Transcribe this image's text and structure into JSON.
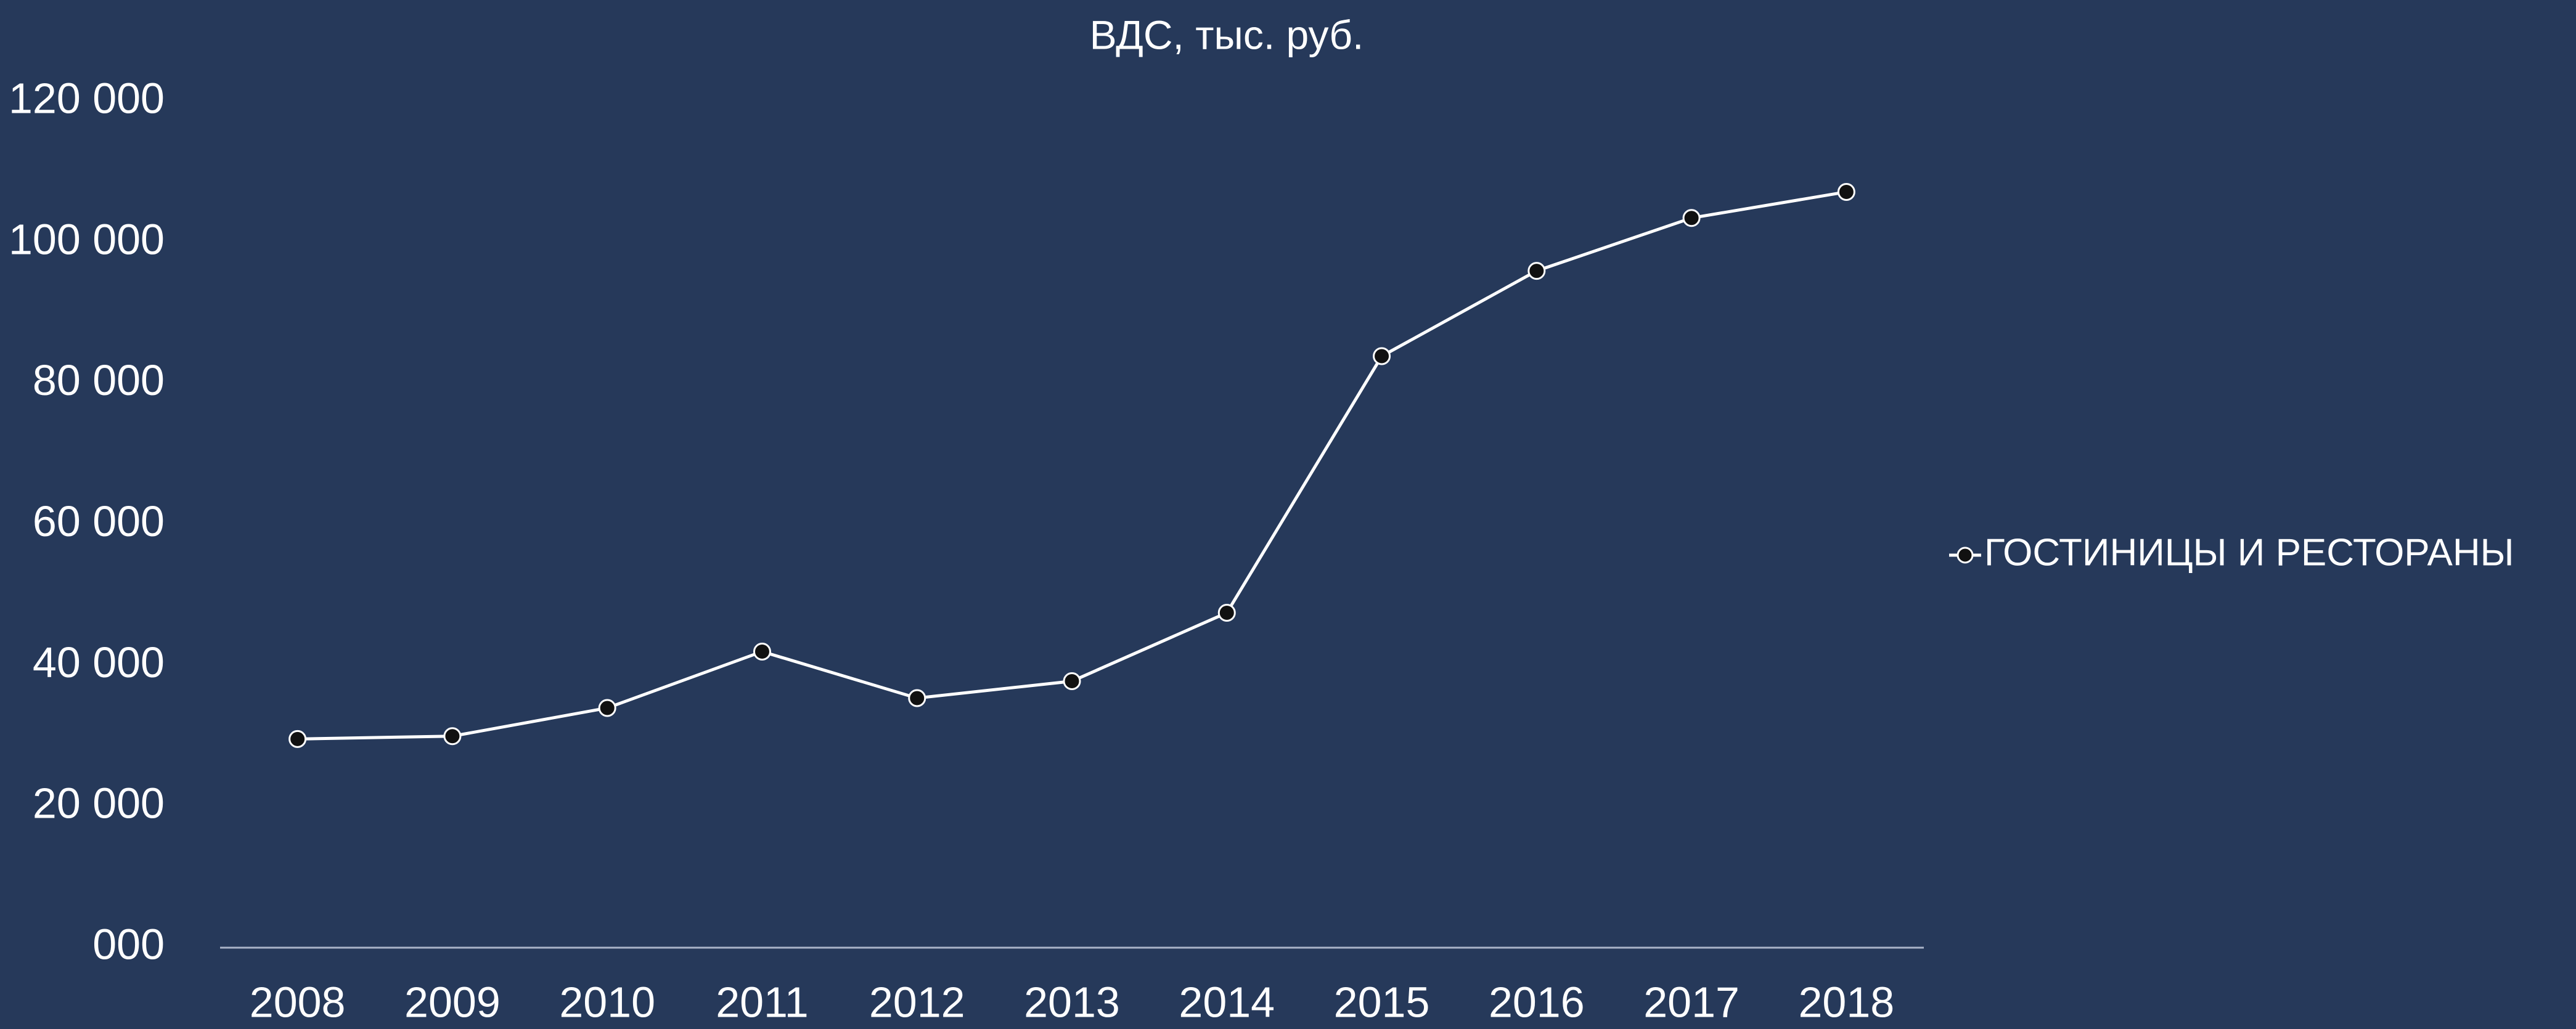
{
  "chart_data": {
    "type": "line",
    "title": "ВДС, тыс. руб.",
    "categories": [
      "2008",
      "2009",
      "2010",
      "2011",
      "2012",
      "2013",
      "2014",
      "2015",
      "2016",
      "2017",
      "2018"
    ],
    "series": [
      {
        "name": "ГОСТИНИЦЫ И РЕСТОРАНЫ",
        "color": "#ffffff",
        "values": [
          29600,
          30000,
          34000,
          42000,
          35400,
          37800,
          47500,
          83900,
          96000,
          103500,
          107200
        ]
      }
    ],
    "ylim": [
      0,
      120000
    ],
    "yticks": [
      {
        "value": 0,
        "label": "000"
      },
      {
        "value": 20000,
        "label": "20 000"
      },
      {
        "value": 40000,
        "label": "40 000"
      },
      {
        "value": 60000,
        "label": "60 000"
      },
      {
        "value": 80000,
        "label": "80 000"
      },
      {
        "value": 100000,
        "label": "100 000"
      },
      {
        "value": 120000,
        "label": "120 000"
      }
    ],
    "grid": false,
    "legend": "right"
  }
}
